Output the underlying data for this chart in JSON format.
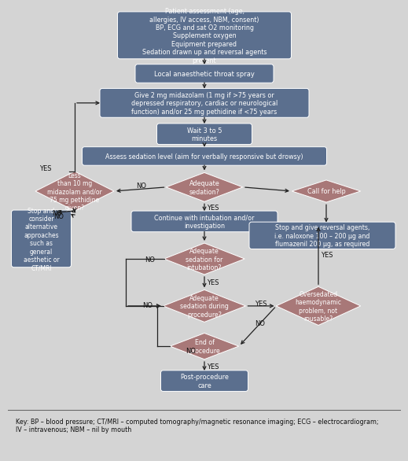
{
  "bg_color": "#d4d4d4",
  "key_bg": "#c8c8c8",
  "box_blue": "#5b6f8e",
  "box_pink": "#a87878",
  "text_white": "#ffffff",
  "text_dark": "#111111",
  "arrow_color": "#222222",
  "key_text": "Key: BP – blood pressure; CT/MRI – computed tomography/magnetic resonance imaging; ECG – electrocardiogram;\nIV – intravenous; NBM – nil by mouth",
  "assess_text": "Patient assessment (age,\nallergies, IV access, NBM, consent)\nBP, ECG and sat O2 monitoring\nSupplement oxygen\nEquipment prepared\nSedation drawn up and reversal agents\npresent",
  "spray_text": "Local anaesthetic throat spray",
  "give_text": "Give 2 mg midazolam (1 mg if >75 years or\ndepressed respiratory, cardiac or neurological\nfunction) and/or 25 mg pethidine if <75 years",
  "wait_text": "Wait 3 to 5\nminutes",
  "assess_sed_text": "Assess sedation level (aim for verbally responsive but drowsy)",
  "continue_text": "Continue with intubation and/or\ninvestigation",
  "stop_alt_text": "Stop and\nconsider\nalternative\napproaches\nsuch as\ngeneral\naesthetic or\nCT/MRI",
  "stop_rev_text": "Stop and give reversal agents,\ni.e. naloxone 100 – 200 μg and\nflumazenil 200 μg, as required",
  "post_text": "Post-procedure\ncare",
  "d_adeq_sed_text": "Adequate\nsedation?",
  "d_less_text": "Less\nthan 10 mg\nmidazolam and/or\n75 mg pethidine\ngiven?",
  "d_adeq_intub_text": "Adequate\nsedation for\nintubation?",
  "d_adeq_proc_text": "Adequate\nsedation during\nprocedure?",
  "d_oversed_text": "Oversedated\nhaemodynamic\nproblem, not\nrousable?",
  "d_end_text": "End of\nprocedure",
  "d_call_text": "Call for help"
}
